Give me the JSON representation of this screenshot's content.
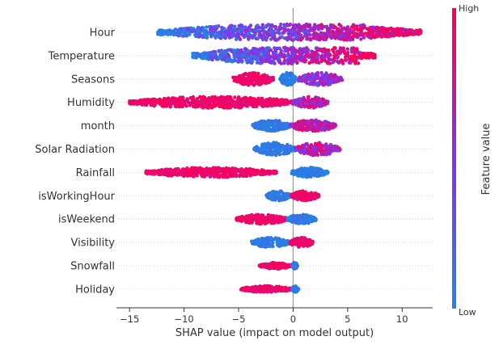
{
  "chart_data": {
    "type": "scatter",
    "subtype": "shap-beeswarm",
    "xlabel": "SHAP value (impact on model output)",
    "xticks": [
      -15,
      -10,
      -5,
      0,
      5,
      10
    ],
    "xlim": [
      -16.2,
      12.8
    ],
    "colorbar": {
      "label": "Feature value",
      "high": "High",
      "low": "Low",
      "low_color": "#1e88e5",
      "high_color": "#ff0052"
    },
    "features": [
      {
        "name": "Hour",
        "range": [
          -12.4,
          11.8
        ],
        "spread": 10,
        "core": [
          -2,
          7
        ],
        "low_side": "left",
        "mix": "wide"
      },
      {
        "name": "Temperature",
        "range": [
          -9.2,
          7.5
        ],
        "spread": 10,
        "core": [
          0,
          6
        ],
        "low_side": "left",
        "mix": "wide"
      },
      {
        "name": "Seasons",
        "range": [
          -5.5,
          4.5
        ],
        "spread": 8,
        "segments": [
          [
            -5.5,
            -1.8,
            "high"
          ],
          [
            -1.2,
            0.3,
            "low"
          ],
          [
            0.5,
            4.5,
            "mid"
          ]
        ]
      },
      {
        "name": "Humidity",
        "range": [
          -15,
          3.2
        ],
        "spread": 7,
        "segments": [
          [
            -15,
            0.5,
            "high"
          ],
          [
            0,
            3.2,
            "mix"
          ]
        ]
      },
      {
        "name": "month",
        "range": [
          -3.7,
          3.9
        ],
        "spread": 7,
        "segments": [
          [
            -3.7,
            -0.3,
            "low"
          ],
          [
            -0.3,
            3.9,
            "mix"
          ]
        ]
      },
      {
        "name": "Solar Radiation",
        "range": [
          -3.6,
          4.3
        ],
        "spread": 8,
        "segments": [
          [
            -3.6,
            0.2,
            "low"
          ],
          [
            0.2,
            4.3,
            "mix"
          ]
        ]
      },
      {
        "name": "Rainfall",
        "range": [
          -13.5,
          3.2
        ],
        "spread": 6,
        "segments": [
          [
            -13.5,
            -1.5,
            "high"
          ],
          [
            -0.2,
            3.2,
            "low"
          ]
        ]
      },
      {
        "name": "isWorkingHour",
        "range": [
          -2.5,
          2.4
        ],
        "spread": 6,
        "segments": [
          [
            -2.5,
            -0.2,
            "low"
          ],
          [
            -0.2,
            2.4,
            "high"
          ]
        ]
      },
      {
        "name": "isWeekend",
        "range": [
          -5.2,
          2.1
        ],
        "spread": 6,
        "segments": [
          [
            -5.2,
            -0.5,
            "high"
          ],
          [
            -0.5,
            2.1,
            "low"
          ]
        ]
      },
      {
        "name": "Visibility",
        "range": [
          -3.8,
          1.8
        ],
        "spread": 6,
        "segments": [
          [
            -3.8,
            -0.3,
            "low"
          ],
          [
            -0.3,
            1.8,
            "high"
          ]
        ]
      },
      {
        "name": "Snowfall",
        "range": [
          -3.1,
          0.4
        ],
        "spread": 4,
        "segments": [
          [
            -3.1,
            -0.1,
            "high"
          ],
          [
            -0.1,
            0.4,
            "low"
          ]
        ]
      },
      {
        "name": "Holiday",
        "range": [
          -4.8,
          0.5
        ],
        "spread": 4,
        "segments": [
          [
            -4.8,
            -0.1,
            "high"
          ],
          [
            -0.1,
            0.5,
            "low"
          ]
        ]
      }
    ]
  }
}
